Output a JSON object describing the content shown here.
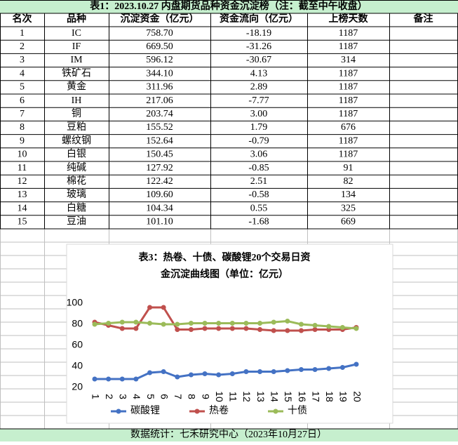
{
  "header": {
    "title": "表1：2023.10.27 内盘期货品种资金沉淀榜（注：截至中午收盘）"
  },
  "table": {
    "columns": [
      "名次",
      "品种",
      "沉淀资金（亿元）",
      "资金流向（亿元）",
      "上榜天数",
      "备注"
    ],
    "rows": [
      [
        "1",
        "IC",
        "758.70",
        "-18.19",
        "1187"
      ],
      [
        "2",
        "IF",
        "669.50",
        "-31.26",
        "1187"
      ],
      [
        "3",
        "IM",
        "596.12",
        "-30.67",
        "314"
      ],
      [
        "4",
        "铁矿石",
        "344.10",
        "4.13",
        "1187"
      ],
      [
        "5",
        "黄金",
        "311.96",
        "2.89",
        "1187"
      ],
      [
        "6",
        "IH",
        "217.06",
        "-7.77",
        "1187"
      ],
      [
        "7",
        "铜",
        "203.74",
        "3.00",
        "1187"
      ],
      [
        "8",
        "豆粕",
        "155.52",
        "1.79",
        "676"
      ],
      [
        "9",
        "螺纹钢",
        "152.64",
        "-0.79",
        "1187"
      ],
      [
        "10",
        "白银",
        "150.45",
        "3.06",
        "1187"
      ],
      [
        "11",
        "纯碱",
        "127.92",
        "-0.85",
        "91"
      ],
      [
        "12",
        "棉花",
        "122.42",
        "2.51",
        "82"
      ],
      [
        "13",
        "玻璃",
        "109.60",
        "-0.58",
        "134"
      ],
      [
        "14",
        "白糖",
        "104.34",
        "0.55",
        "325"
      ],
      [
        "15",
        "豆油",
        "101.10",
        "-1.68",
        "669"
      ]
    ]
  },
  "chart_data": {
    "type": "line",
    "title": [
      "表3：热卷、十债、碳酸锂20个交易日资",
      "金沉淀曲线图（单位：亿元）"
    ],
    "x": [
      1,
      2,
      3,
      4,
      5,
      6,
      7,
      8,
      9,
      10,
      11,
      12,
      13,
      14,
      15,
      16,
      17,
      18,
      19,
      20
    ],
    "series": [
      {
        "name": "碳酸锂",
        "color": "#4472c4",
        "values": [
          28,
          28,
          28,
          28,
          34,
          35,
          30,
          32,
          33,
          32,
          33,
          35,
          35,
          35,
          36,
          37,
          37,
          38,
          39,
          42
        ]
      },
      {
        "name": "热卷",
        "color": "#c0504d",
        "values": [
          82,
          79,
          76,
          76,
          96,
          96,
          75,
          75,
          76,
          76,
          76,
          76,
          75,
          74,
          74,
          74,
          75,
          75,
          75,
          77
        ]
      },
      {
        "name": "十债",
        "color": "#9bbb59",
        "values": [
          80,
          81,
          82,
          82,
          81,
          80,
          80,
          81,
          81,
          81,
          81,
          81,
          81,
          82,
          83,
          80,
          79,
          78,
          77,
          76
        ]
      }
    ],
    "ylim": [
      20,
      100
    ],
    "yticks": [
      20,
      40,
      60,
      80,
      100
    ],
    "xlim": [
      1,
      20
    ],
    "xticks": [
      1,
      2,
      3,
      4,
      5,
      6,
      7,
      8,
      9,
      10,
      11,
      12,
      13,
      14,
      15,
      16,
      17,
      18,
      19,
      20
    ],
    "grid": false,
    "legend": "bottom"
  },
  "footer": {
    "text": "数据统计：七禾研究中心（2023年10月27日）"
  }
}
